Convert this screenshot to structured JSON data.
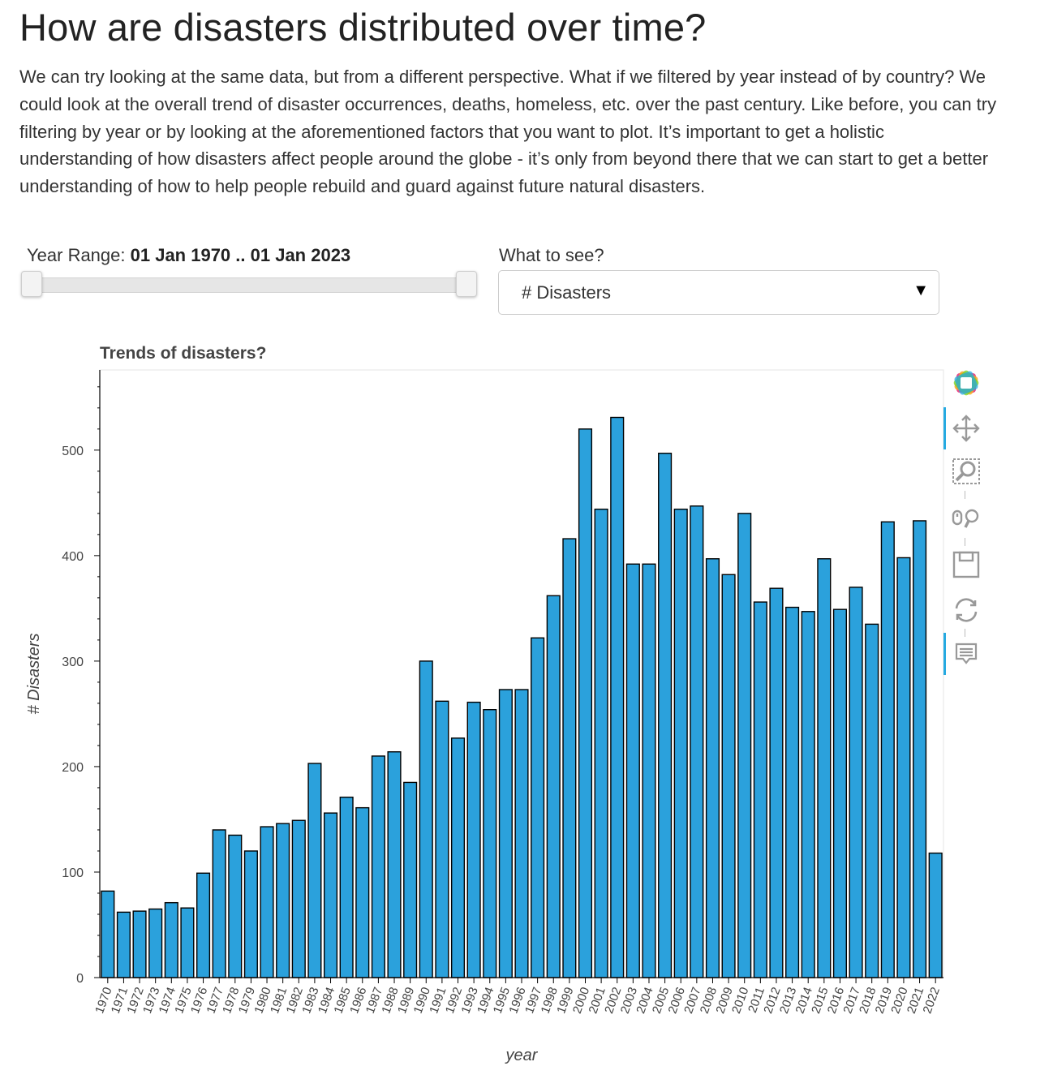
{
  "heading": "How are disasters distributed over time?",
  "intro": "We can try looking at the same data, but from a different perspective. What if we filtered by year instead of by country? We could look at the overall trend of disaster occurrences, deaths, homeless, etc. over the past century. Like before, you can try filtering by year or by looking at the aforementioned factors that you want to plot. It’s important to get a holistic understanding of how disasters affect people around the globe - it’s only from beyond there that we can start to get a better understanding of how to help people rebuild and guard against future natural disasters.",
  "controls": {
    "year_range_label": "Year Range: ",
    "year_range_value": "01 Jan 1970 .. 01 Jan 2023",
    "year_range_fraction": [
      0.0,
      1.0
    ],
    "what_to_see_label": "What to see?",
    "what_to_see_value": "# Disasters"
  },
  "toolbar": {
    "tools": [
      "bokeh-logo-icon",
      "pan-icon",
      "box-zoom-icon",
      "wheel-zoom-icon",
      "save-icon",
      "reset-icon",
      "hover-icon"
    ]
  },
  "colors": {
    "bar_fill": "#2ba1dc",
    "bar_stroke": "#000000",
    "accent": "#26aae1"
  },
  "chart_data": {
    "type": "bar",
    "title": "Trends of disasters?",
    "xlabel": "year",
    "ylabel": "# Disasters",
    "ylim": [
      0,
      576
    ],
    "yticks": [
      0,
      100,
      200,
      300,
      400,
      500
    ],
    "grid": false,
    "categories": [
      "1970",
      "1971",
      "1972",
      "1973",
      "1974",
      "1975",
      "1976",
      "1977",
      "1978",
      "1979",
      "1980",
      "1981",
      "1982",
      "1983",
      "1984",
      "1985",
      "1986",
      "1987",
      "1988",
      "1989",
      "1990",
      "1991",
      "1992",
      "1993",
      "1994",
      "1995",
      "1996",
      "1997",
      "1998",
      "1999",
      "2000",
      "2001",
      "2002",
      "2003",
      "2004",
      "2005",
      "2006",
      "2007",
      "2008",
      "2009",
      "2010",
      "2011",
      "2012",
      "2013",
      "2014",
      "2015",
      "2016",
      "2017",
      "2018",
      "2019",
      "2020",
      "2021",
      "2022"
    ],
    "values": [
      82,
      62,
      63,
      65,
      71,
      66,
      99,
      140,
      135,
      120,
      143,
      146,
      149,
      203,
      156,
      171,
      161,
      210,
      214,
      185,
      300,
      262,
      227,
      261,
      254,
      273,
      273,
      322,
      362,
      416,
      520,
      444,
      531,
      392,
      392,
      497,
      444,
      447,
      397,
      382,
      440,
      356,
      369,
      351,
      347,
      397,
      349,
      370,
      335,
      432,
      398,
      433,
      118
    ]
  }
}
